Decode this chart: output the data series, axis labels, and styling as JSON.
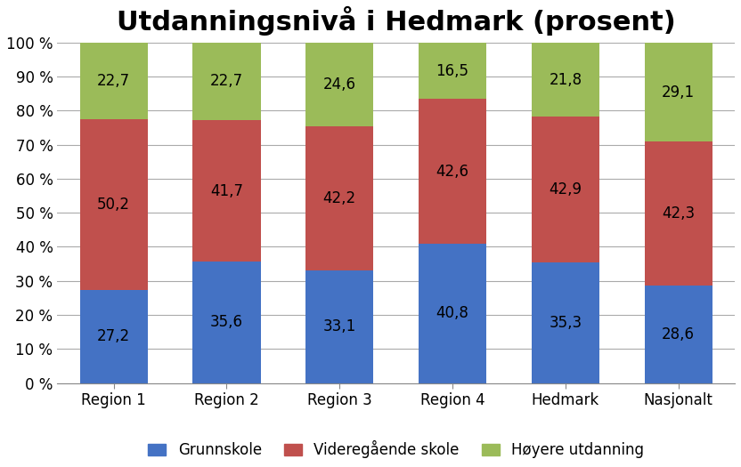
{
  "title": "Utdanningsnivå i Hedmark (prosent)",
  "categories": [
    "Region 1",
    "Region 2",
    "Region 3",
    "Region 4",
    "Hedmark",
    "Nasjonalt"
  ],
  "series": {
    "Grunnskole": [
      27.2,
      35.6,
      33.1,
      40.8,
      35.3,
      28.6
    ],
    "Videregående skole": [
      50.2,
      41.7,
      42.2,
      42.6,
      42.9,
      42.3
    ],
    "Høyere utdanning": [
      22.7,
      22.7,
      24.6,
      16.5,
      21.8,
      29.1
    ]
  },
  "colors": {
    "Grunnskole": "#4472C4",
    "Videregående skole": "#C0504D",
    "Høyere utdanning": "#9BBB59"
  },
  "legend_labels": [
    "Grunnskole",
    "Videregående skole",
    "Høyere utdanning"
  ],
  "ylim": [
    0,
    100
  ],
  "yticks": [
    0,
    10,
    20,
    30,
    40,
    50,
    60,
    70,
    80,
    90,
    100
  ],
  "ytick_labels": [
    "0 %",
    "10 %",
    "20 %",
    "30 %",
    "40 %",
    "50 %",
    "60 %",
    "70 %",
    "80 %",
    "90 %",
    "100 %"
  ],
  "title_fontsize": 22,
  "tick_fontsize": 12,
  "label_fontsize": 12,
  "legend_fontsize": 12,
  "bar_width": 0.6,
  "background_color": "#FFFFFF",
  "grid_color": "#AAAAAA"
}
